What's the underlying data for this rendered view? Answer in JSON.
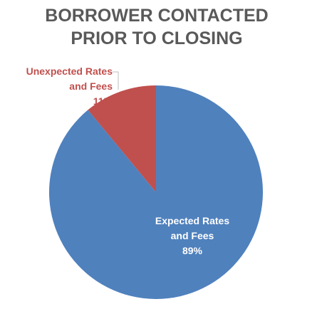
{
  "chart_data": {
    "type": "pie",
    "title": "BORROWER CONTACTED PRIOR TO CLOSING",
    "categories": [
      "Expected Rates and Fees",
      "Unexpected Rates and Fees"
    ],
    "values": [
      89,
      11
    ],
    "value_labels": [
      "89%",
      "11%"
    ],
    "colors": [
      "#4f81bd",
      "#c0504d"
    ]
  }
}
